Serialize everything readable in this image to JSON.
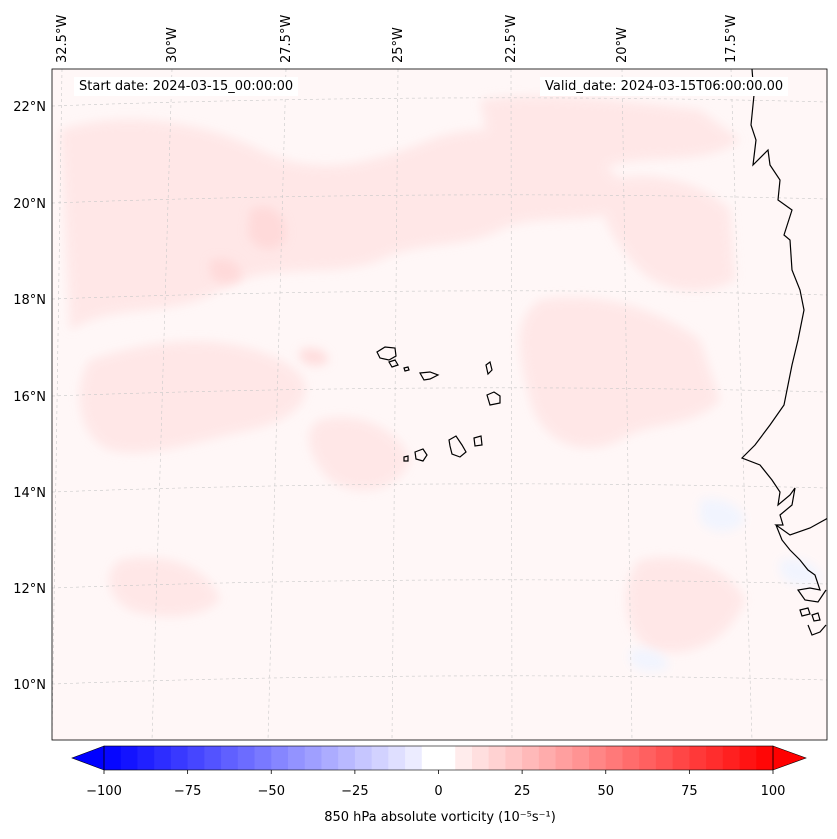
{
  "map": {
    "start_date": "Start date: 2024-03-15_00:00:00",
    "valid_date": "Valid_date: 2024-03-15T06:00:00.00",
    "lon_labels": [
      "32.5°W",
      "30°W",
      "27.5°W",
      "25°W",
      "22.5°W",
      "20°W",
      "17.5°W"
    ],
    "lat_labels": [
      "22°N",
      "20°N",
      "18°N",
      "16°N",
      "14°N",
      "12°N",
      "10°N"
    ],
    "extent": {
      "lon_min": -33,
      "lon_max": -15.5,
      "lat_min": 8.8,
      "lat_max": 22.8
    },
    "coastline_color": "#000000",
    "gridline_color": "#c8c8c8",
    "field_background": "#fff6f6",
    "positive_color": "#ff0000",
    "negative_color": "#0000ff"
  },
  "colorbar": {
    "label": "850 hPa absolute vorticity (10⁻⁵s⁻¹)",
    "min": -100,
    "max": 100,
    "levels": 40,
    "ticks": [
      "−100",
      "−75",
      "−50",
      "−25",
      "0",
      "25",
      "50",
      "75",
      "100"
    ],
    "extend": "both"
  }
}
